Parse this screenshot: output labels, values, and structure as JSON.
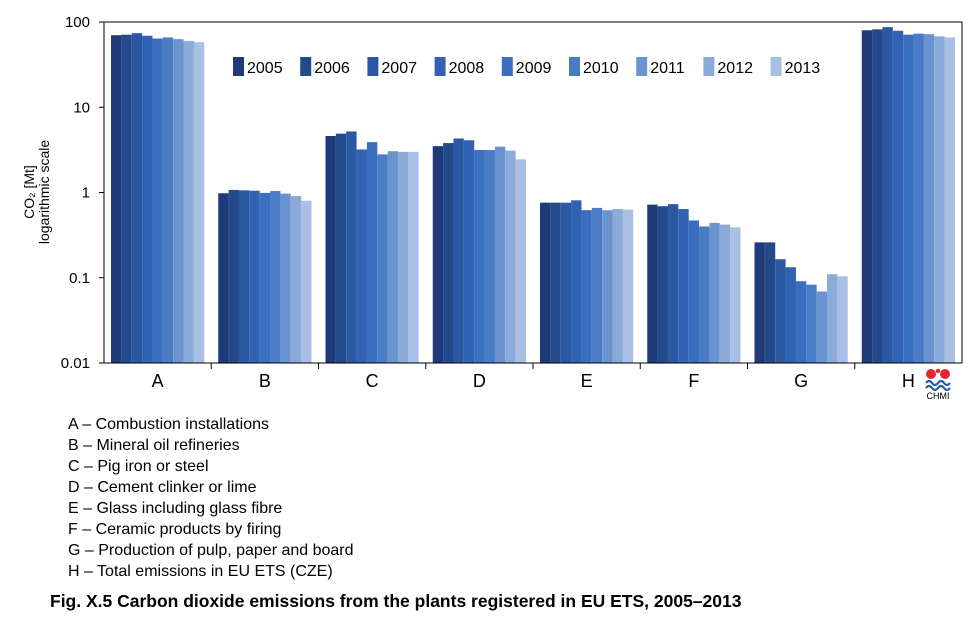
{
  "chart_data": {
    "type": "bar",
    "scale": "log",
    "ylim": [
      0.01,
      100
    ],
    "ylabel_line1": "CO₂ [Mt]",
    "ylabel_line2": "logarithmic scale",
    "yticks": [
      "100",
      "10",
      "1",
      "0.1",
      "0.01"
    ],
    "categories": [
      "A",
      "B",
      "C",
      "D",
      "E",
      "F",
      "G",
      "H"
    ],
    "grid": false,
    "legend_position": "top",
    "series": [
      {
        "name": "2005",
        "color": "#1f3a78",
        "values": [
          70,
          0.98,
          4.6,
          3.5,
          0.76,
          0.72,
          0.26,
          80
        ]
      },
      {
        "name": "2006",
        "color": "#244a8c",
        "values": [
          71,
          1.07,
          4.9,
          3.8,
          0.76,
          0.69,
          0.26,
          82
        ]
      },
      {
        "name": "2007",
        "color": "#2b58a3",
        "values": [
          74,
          1.06,
          5.2,
          4.3,
          0.76,
          0.73,
          0.165,
          87
        ]
      },
      {
        "name": "2008",
        "color": "#3163b2",
        "values": [
          69,
          1.05,
          3.2,
          4.1,
          0.81,
          0.64,
          0.133,
          79
        ]
      },
      {
        "name": "2009",
        "color": "#3a6ebf",
        "values": [
          64,
          0.99,
          3.9,
          3.15,
          0.62,
          0.47,
          0.091,
          71
        ]
      },
      {
        "name": "2010",
        "color": "#4a7cc6",
        "values": [
          66,
          1.04,
          2.8,
          3.15,
          0.66,
          0.4,
          0.083,
          73
        ]
      },
      {
        "name": "2011",
        "color": "#6b93d0",
        "values": [
          63,
          0.97,
          3.05,
          3.45,
          0.62,
          0.44,
          0.069,
          72
        ]
      },
      {
        "name": "2012",
        "color": "#8aaad8",
        "values": [
          60,
          0.91,
          3.0,
          3.1,
          0.64,
          0.42,
          0.11,
          68
        ]
      },
      {
        "name": "2013",
        "color": "#a9c0e4",
        "values": [
          58,
          0.8,
          3.0,
          2.45,
          0.63,
          0.39,
          0.104,
          66
        ]
      }
    ]
  },
  "category_descriptions": [
    "A – Combustion installations",
    "B – Mineral oil refineries",
    "C – Pig iron or steel",
    "D – Cement clinker or lime",
    "E – Glass including glass fibre",
    "F – Ceramic products by firing",
    "G – Production of pulp, paper and board",
    "H – Total emissions in EU ETS (CZE)"
  ],
  "caption": "Fig. X.5  Carbon dioxide emissions from the plants registered in EU ETS, 2005–2013",
  "logo": {
    "text": "CHMI",
    "dot_color": "#e3262b",
    "wave_color": "#2a5aa8"
  }
}
